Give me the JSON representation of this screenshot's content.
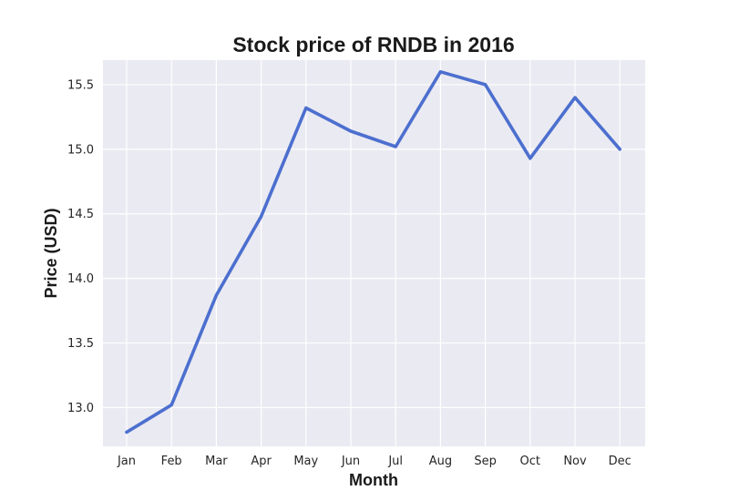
{
  "chart_data": {
    "type": "line",
    "title": "Stock price of RNDB in 2016",
    "xlabel": "Month",
    "ylabel": "Price (USD)",
    "categories": [
      "Jan",
      "Feb",
      "Mar",
      "Apr",
      "May",
      "Jun",
      "Jul",
      "Aug",
      "Sep",
      "Oct",
      "Nov",
      "Dec"
    ],
    "series": [
      {
        "values": [
          12.81,
          13.02,
          13.87,
          14.48,
          15.32,
          15.14,
          15.02,
          15.6,
          15.5,
          14.93,
          15.4,
          15.0
        ],
        "color": "#4c6fcf"
      }
    ],
    "y_ticks": [
      "13.0",
      "13.5",
      "14.0",
      "14.5",
      "15.0",
      "15.5"
    ],
    "ylim": [
      12.7,
      15.69
    ],
    "grid": true,
    "legend": "none",
    "background_color": "#eaeaf2"
  }
}
